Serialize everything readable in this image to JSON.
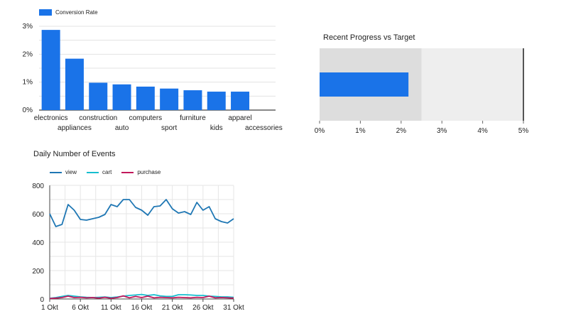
{
  "chart_data": [
    {
      "id": "conversion",
      "type": "bar",
      "title": "",
      "legend": {
        "position": "top-left",
        "entries": [
          "Conversion Rate"
        ]
      },
      "categories": [
        "electronics",
        "appliances",
        "construction",
        "auto",
        "computers",
        "sport",
        "furniture",
        "kids",
        "apparel",
        "accessories"
      ],
      "series": [
        {
          "name": "Conversion Rate",
          "color": "#1a73e8",
          "values": [
            2.87,
            1.84,
            0.98,
            0.92,
            0.84,
            0.77,
            0.71,
            0.66,
            0.66,
            null
          ]
        }
      ],
      "yticks": [
        "0%",
        "1%",
        "2%",
        "3%"
      ],
      "ylim": [
        0,
        3.0
      ],
      "grid": true
    },
    {
      "id": "progress",
      "type": "bar",
      "title": "Recent Progress vs Target",
      "value": 2.18,
      "target": 5.0,
      "band": 2.5,
      "xlim": [
        0,
        5
      ],
      "xticks": [
        "0%",
        "1%",
        "2%",
        "3%",
        "4%",
        "5%"
      ],
      "colors": {
        "bar": "#1a73e8",
        "band_low": "#dddddd",
        "band_high": "#eeeeee",
        "target": "#555555"
      }
    },
    {
      "id": "events",
      "type": "line",
      "title": "Daily Number of Events",
      "legend": {
        "position": "top-left"
      },
      "x": [
        1,
        2,
        3,
        4,
        5,
        6,
        7,
        8,
        9,
        10,
        11,
        12,
        13,
        14,
        15,
        16,
        17,
        18,
        19,
        20,
        21,
        22,
        23,
        24,
        25,
        26,
        27,
        28,
        29,
        30,
        31
      ],
      "xticks": [
        "1 Okt",
        "6 Okt",
        "11 Okt",
        "16 Okt",
        "21 Okt",
        "26 Okt",
        "31 Okt"
      ],
      "xtick_days": [
        1,
        6,
        11,
        16,
        21,
        26,
        31
      ],
      "yticks": [
        "0",
        "200",
        "400",
        "600",
        "800"
      ],
      "ylim": [
        0,
        800
      ],
      "grid": true,
      "series": [
        {
          "name": "view",
          "color": "#1f77b4",
          "values": [
            600,
            510,
            525,
            665,
            625,
            560,
            555,
            565,
            575,
            595,
            665,
            650,
            700,
            700,
            645,
            625,
            590,
            650,
            655,
            700,
            635,
            605,
            615,
            595,
            680,
            625,
            650,
            565,
            545,
            535,
            565
          ]
        },
        {
          "name": "cart",
          "color": "#17becf",
          "values": [
            5,
            10,
            18,
            25,
            20,
            15,
            12,
            10,
            12,
            14,
            10,
            14,
            20,
            25,
            28,
            32,
            25,
            30,
            22,
            18,
            18,
            30,
            30,
            28,
            25,
            25,
            20,
            18,
            15,
            15,
            12
          ]
        },
        {
          "name": "purchase",
          "color": "#c2185b",
          "values": [
            3,
            6,
            10,
            20,
            10,
            12,
            8,
            10,
            6,
            12,
            5,
            10,
            22,
            8,
            18,
            10,
            20,
            8,
            12,
            10,
            8,
            12,
            10,
            8,
            12,
            10,
            20,
            8,
            10,
            8,
            6
          ]
        }
      ]
    }
  ]
}
